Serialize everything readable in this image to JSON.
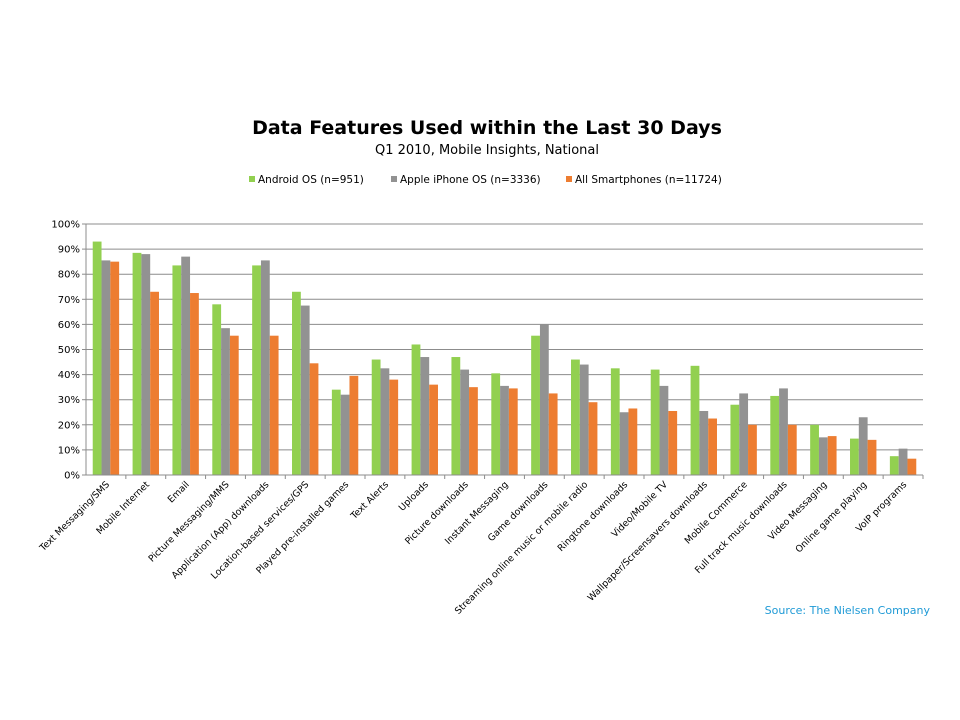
{
  "chart_data": {
    "type": "bar",
    "title": "Data Features Used within the Last 30 Days",
    "subtitle": "Q1 2010, Mobile Insights, National",
    "xlabel": "",
    "ylabel": "",
    "ylim": [
      0,
      100
    ],
    "yticks": [
      "0%",
      "10%",
      "20%",
      "30%",
      "40%",
      "50%",
      "60%",
      "70%",
      "80%",
      "90%",
      "100%"
    ],
    "grid": true,
    "legend_position": "top",
    "categories": [
      "Text Messaging/SMS",
      "Mobile Internet",
      "Email",
      "Picture Messaging/MMS",
      "Application (App) downloads",
      "Location-based services/GPS",
      "Played pre-installed games",
      "Text Alerts",
      "Uploads",
      "Picture downloads",
      "Instant Messaging",
      "Game downloads",
      "Streaming online music or mobile radio",
      "Ringtone downloads",
      "Video/Mobile TV",
      "Wallpaper/Screensavers downloads",
      "Mobile Commerce",
      "Full track music downloads",
      "Video Messaging",
      "Online game playing",
      "VoIP programs"
    ],
    "series": [
      {
        "name": "Android OS (n=951)",
        "color": "#92d050",
        "values": [
          93,
          88.5,
          83.5,
          68,
          83.5,
          73,
          34,
          46,
          52,
          47,
          40.5,
          55.5,
          46,
          42.5,
          42,
          43.5,
          28,
          31.5,
          20,
          14.5,
          7.5
        ]
      },
      {
        "name": "Apple iPhone OS (n=3336)",
        "color": "#929292",
        "values": [
          85.5,
          88,
          87,
          58.5,
          85.5,
          67.5,
          32,
          42.5,
          47,
          42,
          35.5,
          60,
          44,
          25,
          35.5,
          25.5,
          32.5,
          34.5,
          15,
          23,
          10.5
        ]
      },
      {
        "name": "All Smartphones (n=11724)",
        "color": "#ed7d31",
        "values": [
          85,
          73,
          72.5,
          55.5,
          55.5,
          44.5,
          39.5,
          38,
          36,
          35,
          34.5,
          32.5,
          29,
          26.5,
          25.5,
          22.5,
          20,
          20,
          15.5,
          14,
          6.5
        ]
      }
    ],
    "source": "Source: The Nielsen Company"
  }
}
